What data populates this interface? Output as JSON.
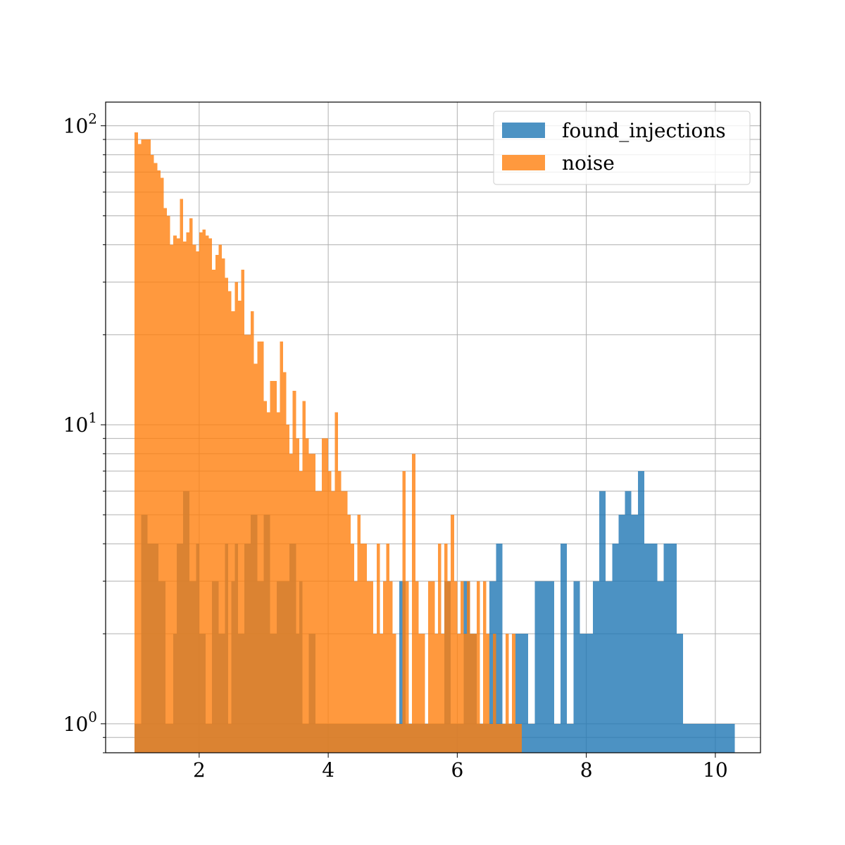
{
  "chart_data": {
    "type": "bar",
    "subtype": "histogram",
    "title": "",
    "xlabel": "",
    "ylabel": "",
    "xlim": [
      0.55,
      10.7
    ],
    "ylim": [
      0.8,
      120
    ],
    "yscale": "log",
    "grid": true,
    "legend_position": "top-right",
    "xticks": [
      2,
      4,
      6,
      8,
      10
    ],
    "yticks": [
      {
        "value": 1,
        "base": "10",
        "exp": "0"
      },
      {
        "value": 10,
        "base": "10",
        "exp": "1"
      },
      {
        "value": 100,
        "base": "10",
        "exp": "2"
      }
    ],
    "series": [
      {
        "name": "found_injections",
        "color": "#1f77b4",
        "opacity": 0.8,
        "bins": [
          [
            1.0,
            1.1,
            1
          ],
          [
            1.1,
            1.2,
            5
          ],
          [
            1.2,
            1.37,
            4
          ],
          [
            1.37,
            1.48,
            3
          ],
          [
            1.48,
            1.6,
            1
          ],
          [
            1.6,
            1.65,
            2
          ],
          [
            1.65,
            1.75,
            4
          ],
          [
            1.75,
            1.85,
            6
          ],
          [
            1.85,
            1.95,
            3
          ],
          [
            1.95,
            2.0,
            4
          ],
          [
            2.0,
            2.1,
            2
          ],
          [
            2.1,
            2.2,
            1
          ],
          [
            2.2,
            2.3,
            3
          ],
          [
            2.3,
            2.4,
            2
          ],
          [
            2.4,
            2.45,
            4
          ],
          [
            2.45,
            2.5,
            1
          ],
          [
            2.5,
            2.55,
            3
          ],
          [
            2.55,
            2.6,
            4
          ],
          [
            2.6,
            2.7,
            2
          ],
          [
            2.7,
            2.8,
            4
          ],
          [
            2.8,
            2.9,
            5
          ],
          [
            2.9,
            3.0,
            3
          ],
          [
            3.0,
            3.1,
            5
          ],
          [
            3.1,
            3.2,
            2
          ],
          [
            3.2,
            3.3,
            3
          ],
          [
            3.3,
            3.4,
            3
          ],
          [
            3.4,
            3.5,
            4
          ],
          [
            3.5,
            3.55,
            2
          ],
          [
            3.55,
            3.6,
            3
          ],
          [
            3.6,
            3.7,
            1
          ],
          [
            3.7,
            3.8,
            2
          ],
          [
            3.8,
            3.9,
            1
          ],
          [
            3.9,
            4.0,
            1
          ],
          [
            4.0,
            4.1,
            1
          ],
          [
            4.1,
            4.2,
            1
          ],
          [
            4.2,
            4.3,
            1
          ],
          [
            4.3,
            4.4,
            1
          ],
          [
            4.4,
            4.5,
            1
          ],
          [
            4.5,
            4.6,
            1
          ],
          [
            4.6,
            4.7,
            1
          ],
          [
            4.7,
            4.8,
            1
          ],
          [
            4.8,
            4.9,
            1
          ],
          [
            4.9,
            5.0,
            1
          ],
          [
            5.0,
            5.1,
            1
          ],
          [
            5.1,
            5.2,
            3
          ],
          [
            5.2,
            5.3,
            1
          ],
          [
            5.3,
            5.4,
            1
          ],
          [
            5.4,
            5.5,
            1
          ],
          [
            5.5,
            5.6,
            1
          ],
          [
            5.6,
            5.7,
            1
          ],
          [
            5.7,
            5.8,
            1
          ],
          [
            5.8,
            5.9,
            3
          ],
          [
            5.9,
            6.0,
            1
          ],
          [
            6.0,
            6.1,
            1
          ],
          [
            6.1,
            6.2,
            3
          ],
          [
            6.2,
            6.3,
            2
          ],
          [
            6.3,
            6.4,
            1
          ],
          [
            6.4,
            6.5,
            1
          ],
          [
            6.5,
            6.6,
            3
          ],
          [
            6.6,
            6.7,
            4
          ],
          [
            6.7,
            6.8,
            1
          ],
          [
            6.8,
            6.9,
            1
          ],
          [
            6.9,
            7.0,
            2
          ],
          [
            7.0,
            7.1,
            2
          ],
          [
            7.1,
            7.2,
            1
          ],
          [
            7.2,
            7.3,
            3
          ],
          [
            7.3,
            7.4,
            3
          ],
          [
            7.4,
            7.5,
            3
          ],
          [
            7.5,
            7.6,
            1
          ],
          [
            7.6,
            7.7,
            4
          ],
          [
            7.7,
            7.8,
            1
          ],
          [
            7.8,
            7.9,
            3
          ],
          [
            7.9,
            8.0,
            2
          ],
          [
            8.0,
            8.1,
            2
          ],
          [
            8.1,
            8.2,
            3
          ],
          [
            8.2,
            8.3,
            6
          ],
          [
            8.3,
            8.4,
            3
          ],
          [
            8.4,
            8.5,
            4
          ],
          [
            8.5,
            8.6,
            5
          ],
          [
            8.6,
            8.7,
            6
          ],
          [
            8.7,
            8.8,
            5
          ],
          [
            8.8,
            8.9,
            7
          ],
          [
            8.9,
            9.0,
            4
          ],
          [
            9.0,
            9.1,
            4
          ],
          [
            9.1,
            9.2,
            3
          ],
          [
            9.2,
            9.3,
            4
          ],
          [
            9.3,
            9.4,
            4
          ],
          [
            9.4,
            9.5,
            2
          ],
          [
            9.5,
            9.6,
            1
          ],
          [
            9.6,
            9.7,
            1
          ],
          [
            9.7,
            9.8,
            1
          ],
          [
            9.8,
            9.9,
            1
          ],
          [
            9.9,
            10.0,
            1
          ],
          [
            10.0,
            10.1,
            1
          ],
          [
            10.1,
            10.2,
            1
          ],
          [
            10.2,
            10.3,
            1
          ]
        ]
      },
      {
        "name": "noise",
        "color": "#ff7f0e",
        "opacity": 0.8,
        "bins": [
          [
            1.0,
            1.05,
            95
          ],
          [
            1.05,
            1.1,
            87
          ],
          [
            1.1,
            1.15,
            90
          ],
          [
            1.15,
            1.25,
            90
          ],
          [
            1.25,
            1.3,
            80
          ],
          [
            1.3,
            1.35,
            75
          ],
          [
            1.35,
            1.4,
            71
          ],
          [
            1.4,
            1.45,
            67
          ],
          [
            1.45,
            1.5,
            53
          ],
          [
            1.5,
            1.55,
            50
          ],
          [
            1.55,
            1.6,
            40
          ],
          [
            1.6,
            1.65,
            43
          ],
          [
            1.65,
            1.7,
            42
          ],
          [
            1.7,
            1.75,
            57
          ],
          [
            1.75,
            1.8,
            41
          ],
          [
            1.8,
            1.85,
            44
          ],
          [
            1.85,
            1.9,
            49
          ],
          [
            1.9,
            1.95,
            40
          ],
          [
            1.95,
            2.0,
            38
          ],
          [
            2.0,
            2.05,
            44
          ],
          [
            2.05,
            2.1,
            45
          ],
          [
            2.1,
            2.15,
            43
          ],
          [
            2.15,
            2.2,
            42
          ],
          [
            2.2,
            2.25,
            33
          ],
          [
            2.25,
            2.3,
            37
          ],
          [
            2.3,
            2.35,
            40
          ],
          [
            2.35,
            2.4,
            36
          ],
          [
            2.4,
            2.45,
            31
          ],
          [
            2.45,
            2.5,
            28
          ],
          [
            2.5,
            2.55,
            24
          ],
          [
            2.55,
            2.6,
            30
          ],
          [
            2.6,
            2.65,
            26
          ],
          [
            2.65,
            2.7,
            33
          ],
          [
            2.7,
            2.75,
            20
          ],
          [
            2.75,
            2.8,
            20
          ],
          [
            2.8,
            2.85,
            24
          ],
          [
            2.85,
            2.9,
            16
          ],
          [
            2.9,
            2.95,
            19
          ],
          [
            2.95,
            3.0,
            19
          ],
          [
            3.0,
            3.05,
            12
          ],
          [
            3.05,
            3.1,
            11
          ],
          [
            3.1,
            3.15,
            14
          ],
          [
            3.15,
            3.2,
            14
          ],
          [
            3.2,
            3.25,
            11
          ],
          [
            3.25,
            3.3,
            19
          ],
          [
            3.3,
            3.35,
            15
          ],
          [
            3.35,
            3.4,
            10
          ],
          [
            3.4,
            3.45,
            8
          ],
          [
            3.45,
            3.5,
            13
          ],
          [
            3.5,
            3.55,
            9
          ],
          [
            3.55,
            3.6,
            7
          ],
          [
            3.6,
            3.65,
            12
          ],
          [
            3.65,
            3.7,
            9
          ],
          [
            3.7,
            3.75,
            8
          ],
          [
            3.75,
            3.8,
            8
          ],
          [
            3.8,
            3.85,
            6
          ],
          [
            3.85,
            3.9,
            6
          ],
          [
            3.9,
            3.95,
            9
          ],
          [
            3.95,
            4.0,
            9
          ],
          [
            4.0,
            4.05,
            7
          ],
          [
            4.05,
            4.1,
            6
          ],
          [
            4.1,
            4.15,
            11
          ],
          [
            4.15,
            4.2,
            7
          ],
          [
            4.2,
            4.25,
            6
          ],
          [
            4.25,
            4.3,
            6
          ],
          [
            4.3,
            4.35,
            5
          ],
          [
            4.35,
            4.4,
            4
          ],
          [
            4.4,
            4.45,
            3
          ],
          [
            4.45,
            4.5,
            5
          ],
          [
            4.5,
            4.55,
            4
          ],
          [
            4.55,
            4.6,
            4
          ],
          [
            4.6,
            4.65,
            3
          ],
          [
            4.65,
            4.7,
            3
          ],
          [
            4.7,
            4.75,
            2
          ],
          [
            4.75,
            4.8,
            4
          ],
          [
            4.8,
            4.85,
            2
          ],
          [
            4.85,
            4.9,
            3
          ],
          [
            4.9,
            4.95,
            4
          ],
          [
            4.95,
            5.0,
            3
          ],
          [
            5.0,
            5.05,
            2
          ],
          [
            5.05,
            5.1,
            1
          ],
          [
            5.1,
            5.15,
            1
          ],
          [
            5.15,
            5.2,
            7
          ],
          [
            5.2,
            5.25,
            3
          ],
          [
            5.25,
            5.3,
            1
          ],
          [
            5.3,
            5.35,
            8
          ],
          [
            5.35,
            5.4,
            3
          ],
          [
            5.4,
            5.45,
            2
          ],
          [
            5.45,
            5.5,
            2
          ],
          [
            5.5,
            5.55,
            1
          ],
          [
            5.55,
            5.6,
            3
          ],
          [
            5.6,
            5.65,
            3
          ],
          [
            5.65,
            5.7,
            2
          ],
          [
            5.7,
            5.75,
            4
          ],
          [
            5.75,
            5.8,
            2
          ],
          [
            5.8,
            5.85,
            4
          ],
          [
            5.85,
            5.9,
            3
          ],
          [
            5.9,
            5.95,
            5
          ],
          [
            5.95,
            6.0,
            3
          ],
          [
            6.0,
            6.05,
            2
          ],
          [
            6.05,
            6.1,
            3
          ],
          [
            6.1,
            6.15,
            2
          ],
          [
            6.15,
            6.2,
            3
          ],
          [
            6.2,
            6.25,
            2
          ],
          [
            6.25,
            6.3,
            2
          ],
          [
            6.3,
            6.35,
            3
          ],
          [
            6.35,
            6.4,
            1
          ],
          [
            6.4,
            6.45,
            3
          ],
          [
            6.45,
            6.5,
            2
          ],
          [
            6.5,
            6.55,
            1
          ],
          [
            6.55,
            6.6,
            2
          ],
          [
            6.6,
            6.65,
            1
          ],
          [
            6.65,
            6.7,
            1
          ],
          [
            6.7,
            6.75,
            1
          ],
          [
            6.75,
            6.8,
            2
          ],
          [
            6.8,
            6.85,
            1
          ],
          [
            6.85,
            6.9,
            2
          ],
          [
            6.9,
            6.95,
            1
          ],
          [
            6.95,
            7.0,
            1
          ]
        ]
      }
    ]
  }
}
